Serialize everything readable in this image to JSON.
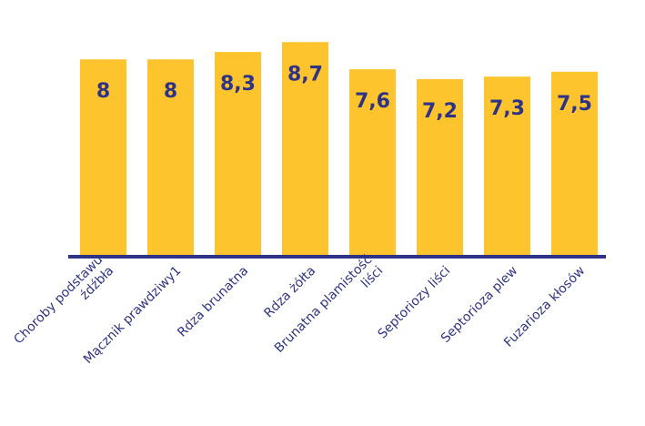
{
  "chart_data": {
    "type": "bar",
    "categories": [
      [
        "Choroby  podstawu",
        "źdźbła"
      ],
      [
        "Mącznik prawdziwy1"
      ],
      [
        "Rdza brunatna"
      ],
      [
        "Rdza żółta"
      ],
      [
        "Brunatna plamistość",
        "liści"
      ],
      [
        "Septoriozy liści"
      ],
      [
        "Septorioza plew"
      ],
      [
        "Fuzarioza kłosów"
      ]
    ],
    "values": [
      8,
      8,
      8.3,
      8.7,
      7.6,
      7.2,
      7.3,
      7.5
    ],
    "data_labels": [
      "8",
      "8",
      "8,3",
      "8,7",
      "7,6",
      "7,2",
      "7,3",
      "7,5"
    ],
    "ylim": [
      0,
      9.3
    ],
    "grid": false,
    "colors": {
      "bar": "#FDC42E",
      "axis": "#2E3386",
      "label": "#2E3386"
    }
  }
}
